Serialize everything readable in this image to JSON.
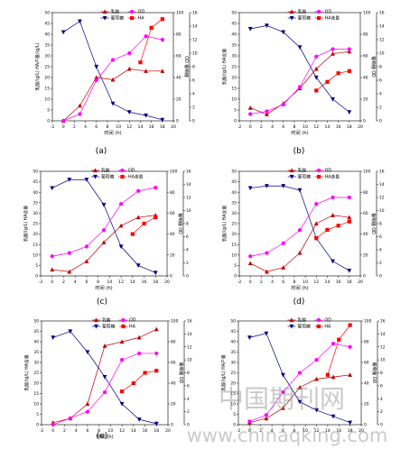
{
  "watermark": {
    "cn": "中国期刊网",
    "url": "www.chinaqking.com",
    "color": "#8a8a8a"
  },
  "colors": {
    "lactic": "#c00000",
    "glucose": "#000080",
    "od": "#ff00ff",
    "ha": "#ff0000"
  },
  "chart_data": [
    {
      "panel_label": "(a)",
      "type": "line",
      "xlabel": "时间 (h)",
      "ylabel_left": "乳酸/(g/L) HA产量/(g/L)",
      "ylabel_right": "OD 葡萄糖",
      "x_ticks": [
        "-2",
        "0",
        "2",
        "4",
        "6",
        "8",
        "10",
        "12",
        "14",
        "16",
        "18",
        "20"
      ],
      "y_left_ticks": [
        "0",
        "5",
        "10",
        "15",
        "20",
        "25",
        "30",
        "35",
        "40",
        "45",
        "50"
      ],
      "y_right1_ticks": [
        "0",
        "20",
        "40",
        "60",
        "80",
        "100"
      ],
      "y_right2_ticks": [
        "0",
        "2",
        "4",
        "6",
        "8",
        "10",
        "12",
        "14",
        "16"
      ],
      "xlim": [
        -2,
        20
      ],
      "legend": [
        {
          "key": "lactic",
          "label": "乳酸"
        },
        {
          "key": "od",
          "label": "OD"
        },
        {
          "key": "glucose",
          "label": "葡萄糖"
        },
        {
          "key": "ha",
          "label": "HA"
        }
      ],
      "series": [
        {
          "key": "lactic",
          "axis": "left",
          "ylim": [
            0,
            50
          ],
          "x": [
            0,
            3,
            6,
            9,
            12,
            15,
            18
          ],
          "y": [
            0,
            7,
            20,
            19,
            24,
            23,
            23
          ]
        },
        {
          "key": "glucose",
          "axis": "right1",
          "ylim": [
            0,
            100
          ],
          "x": [
            0,
            3,
            6,
            9,
            12,
            15,
            18
          ],
          "y": [
            82,
            92,
            50,
            16,
            8,
            5,
            1
          ]
        },
        {
          "key": "od",
          "axis": "right2",
          "ylim": [
            0,
            16
          ],
          "x": [
            0,
            3,
            6,
            9,
            12,
            15,
            18
          ],
          "y": [
            0,
            1,
            6,
            9,
            10,
            12.5,
            12
          ]
        },
        {
          "key": "ha",
          "axis": "left",
          "ylim": [
            0,
            50
          ],
          "x": [
            14,
            16,
            18
          ],
          "y": [
            27,
            43,
            47
          ]
        }
      ]
    },
    {
      "panel_label": "(b)",
      "type": "line",
      "xlabel": "时间 (h)",
      "ylabel_left": "乳酸/(g/L) HA含量",
      "ylabel_right": "葡萄糖 OD",
      "x_ticks": [
        "-2",
        "0",
        "2",
        "4",
        "6",
        "8",
        "10",
        "12",
        "14",
        "16",
        "18",
        "20"
      ],
      "y_left_ticks": [
        "0",
        "5",
        "10",
        "15",
        "20",
        "25",
        "30",
        "35",
        "40",
        "45",
        "50"
      ],
      "y_right1_ticks": [
        "0",
        "20",
        "40",
        "60",
        "80",
        "100"
      ],
      "y_right2_ticks": [
        "0",
        "2",
        "4",
        "6",
        "8",
        "10",
        "12",
        "14",
        "16"
      ],
      "xlim": [
        -2,
        20
      ],
      "legend": [
        {
          "key": "lactic",
          "label": "乳酸"
        },
        {
          "key": "od",
          "label": "OD"
        },
        {
          "key": "glucose",
          "label": "葡萄糖"
        },
        {
          "key": "ha",
          "label": "HA含量"
        }
      ],
      "series": [
        {
          "key": "lactic",
          "axis": "left",
          "ylim": [
            0,
            50
          ],
          "x": [
            0,
            3,
            6,
            9,
            12,
            15,
            18
          ],
          "y": [
            6,
            3,
            8,
            15,
            24,
            31,
            32
          ]
        },
        {
          "key": "glucose",
          "axis": "right1",
          "ylim": [
            0,
            100
          ],
          "x": [
            0,
            3,
            6,
            9,
            12,
            15,
            18
          ],
          "y": [
            85,
            88,
            82,
            68,
            40,
            20,
            8
          ]
        },
        {
          "key": "od",
          "axis": "right2",
          "ylim": [
            0,
            16
          ],
          "x": [
            0,
            3,
            6,
            9,
            12,
            15,
            18
          ],
          "y": [
            1,
            1.4,
            2.4,
            5,
            9.5,
            10.6,
            10.6
          ]
        },
        {
          "key": "ha",
          "axis": "left",
          "ylim": [
            0,
            50
          ],
          "x": [
            12,
            14,
            16,
            18
          ],
          "y": [
            14,
            18,
            22,
            23
          ]
        }
      ]
    },
    {
      "panel_label": "(c)",
      "type": "line",
      "xlabel": "时间 (h)",
      "ylabel_left": "乳酸/(g/L) HA含量",
      "ylabel_right": "葡萄糖 OD",
      "x_ticks": [
        "-2",
        "0",
        "2",
        "4",
        "6",
        "8",
        "10",
        "12",
        "14",
        "16",
        "18",
        "20"
      ],
      "y_left_ticks": [
        "0",
        "5",
        "10",
        "15",
        "20",
        "25",
        "30",
        "35",
        "40",
        "45",
        "50"
      ],
      "y_right1_ticks": [
        "0",
        "20",
        "40",
        "60",
        "80",
        "100"
      ],
      "y_right2_ticks": [
        "0",
        "2",
        "4",
        "6",
        "8",
        "10",
        "12",
        "14",
        "16"
      ],
      "xlim": [
        -2,
        20
      ],
      "legend": [
        {
          "key": "lactic",
          "label": "乳酸"
        },
        {
          "key": "od",
          "label": "OD"
        },
        {
          "key": "glucose",
          "label": "葡萄糖"
        },
        {
          "key": "ha",
          "label": "HA含量"
        }
      ],
      "series": [
        {
          "key": "lactic",
          "axis": "left",
          "ylim": [
            0,
            50
          ],
          "x": [
            0,
            3,
            6,
            9,
            12,
            15,
            18
          ],
          "y": [
            3,
            2,
            7,
            16,
            24,
            28,
            29
          ]
        },
        {
          "key": "glucose",
          "axis": "right1",
          "ylim": [
            0,
            100
          ],
          "x": [
            0,
            3,
            6,
            9,
            12,
            15,
            18
          ],
          "y": [
            84,
            92,
            92,
            68,
            28,
            10,
            3
          ]
        },
        {
          "key": "od",
          "axis": "right2",
          "ylim": [
            0,
            16
          ],
          "x": [
            0,
            3,
            6,
            9,
            12,
            15,
            18
          ],
          "y": [
            3,
            3.5,
            4.5,
            7,
            11,
            13,
            13.5
          ]
        },
        {
          "key": "ha",
          "axis": "left",
          "ylim": [
            0,
            50
          ],
          "x": [
            14,
            16,
            18
          ],
          "y": [
            20,
            25,
            28
          ]
        }
      ]
    },
    {
      "panel_label": "(d)",
      "type": "line",
      "xlabel": "时间 (h)",
      "ylabel_left": "乳酸/(g/L) HA含量",
      "ylabel_right": "葡萄糖 OD",
      "x_ticks": [
        "-2",
        "0",
        "2",
        "4",
        "6",
        "8",
        "10",
        "12",
        "14",
        "16",
        "18",
        "20"
      ],
      "y_left_ticks": [
        "0",
        "5",
        "10",
        "15",
        "20",
        "25",
        "30",
        "35",
        "40",
        "45",
        "50"
      ],
      "y_right1_ticks": [
        "0",
        "20",
        "40",
        "60",
        "80",
        "100"
      ],
      "y_right2_ticks": [
        "0",
        "2",
        "4",
        "6",
        "8",
        "10",
        "12",
        "14",
        "16"
      ],
      "xlim": [
        -2,
        20
      ],
      "legend": [
        {
          "key": "lactic",
          "label": "乳酸"
        },
        {
          "key": "od",
          "label": "OD"
        },
        {
          "key": "glucose",
          "label": "葡萄糖"
        },
        {
          "key": "ha",
          "label": "HA含量"
        }
      ],
      "series": [
        {
          "key": "lactic",
          "axis": "left",
          "ylim": [
            0,
            50
          ],
          "x": [
            0,
            3,
            6,
            9,
            12,
            15,
            18
          ],
          "y": [
            6,
            2,
            4,
            11,
            25,
            29,
            28
          ]
        },
        {
          "key": "glucose",
          "axis": "right1",
          "ylim": [
            0,
            100
          ],
          "x": [
            0,
            3,
            6,
            9,
            12,
            15,
            18
          ],
          "y": [
            84,
            86,
            86,
            82,
            36,
            14,
            5
          ]
        },
        {
          "key": "od",
          "axis": "right2",
          "ylim": [
            0,
            16
          ],
          "x": [
            0,
            3,
            6,
            9,
            12,
            15,
            18
          ],
          "y": [
            3,
            3.5,
            5,
            7,
            11,
            12,
            12
          ]
        },
        {
          "key": "ha",
          "axis": "left",
          "ylim": [
            0,
            50
          ],
          "x": [
            12,
            14,
            16,
            18
          ],
          "y": [
            18,
            22,
            24,
            26
          ]
        }
      ]
    },
    {
      "panel_label": "(e)",
      "type": "line",
      "xlabel": "时间 (h)",
      "ylabel_left": "乳酸/(g/L) HA含量",
      "ylabel_right": "葡萄糖 OD",
      "x_ticks": [
        "-2",
        "0",
        "2",
        "4",
        "6",
        "8",
        "10",
        "12",
        "14",
        "16",
        "18",
        "20"
      ],
      "y_left_ticks": [
        "0",
        "5",
        "10",
        "15",
        "20",
        "25",
        "30",
        "35",
        "40",
        "45",
        "50"
      ],
      "y_right1_ticks": [
        "0",
        "20",
        "40",
        "60",
        "80",
        "100"
      ],
      "y_right2_ticks": [
        "0",
        "2",
        "4",
        "6",
        "8",
        "10",
        "12",
        "14",
        "16"
      ],
      "xlim": [
        -2,
        20
      ],
      "legend": [
        {
          "key": "lactic",
          "label": "乳酸"
        },
        {
          "key": "od",
          "label": "OD"
        },
        {
          "key": "glucose",
          "label": "葡萄糖"
        },
        {
          "key": "ha",
          "label": "HA"
        }
      ],
      "series": [
        {
          "key": "lactic",
          "axis": "left",
          "ylim": [
            0,
            50
          ],
          "x": [
            0,
            3,
            6,
            9,
            12,
            15,
            18
          ],
          "y": [
            1,
            3,
            10,
            38,
            40,
            42,
            46
          ]
        },
        {
          "key": "glucose",
          "axis": "right1",
          "ylim": [
            0,
            100
          ],
          "x": [
            0,
            3,
            6,
            9,
            12,
            15,
            18
          ],
          "y": [
            84,
            90,
            70,
            46,
            20,
            5,
            1
          ]
        },
        {
          "key": "od",
          "axis": "right2",
          "ylim": [
            0,
            16
          ],
          "x": [
            0,
            3,
            6,
            9,
            12,
            15,
            18
          ],
          "y": [
            0,
            1,
            2,
            5,
            10,
            11,
            11
          ]
        },
        {
          "key": "ha",
          "axis": "left",
          "ylim": [
            0,
            50
          ],
          "x": [
            12,
            14,
            16,
            18
          ],
          "y": [
            16,
            20,
            25,
            26
          ]
        }
      ]
    },
    {
      "panel_label": "",
      "type": "line",
      "xlabel": "",
      "ylabel_left": "乳酸/(g/L) HA产量",
      "ylabel_right": "葡萄糖 OD",
      "x_ticks": [
        "-2",
        "0",
        "2",
        "4",
        "6",
        "8",
        "10",
        "12",
        "14",
        "16",
        "18",
        "20"
      ],
      "y_left_ticks": [
        "0",
        "5",
        "10",
        "15",
        "20",
        "25",
        "30",
        "35",
        "40",
        "45",
        "50"
      ],
      "y_right1_ticks": [
        "0",
        "20",
        "40",
        "60",
        "80",
        "100"
      ],
      "y_right2_ticks": [
        "0",
        "2",
        "4",
        "6",
        "8",
        "10",
        "12",
        "14",
        "16"
      ],
      "xlim": [
        -2,
        20
      ],
      "legend": [
        {
          "key": "lactic",
          "label": "乳酸"
        },
        {
          "key": "od",
          "label": "OD"
        },
        {
          "key": "glucose",
          "label": "葡萄糖"
        },
        {
          "key": "ha",
          "label": "HA"
        }
      ],
      "series": [
        {
          "key": "lactic",
          "axis": "left",
          "ylim": [
            0,
            50
          ],
          "x": [
            0,
            3,
            6,
            9,
            12,
            15,
            18
          ],
          "y": [
            1,
            3,
            8,
            18,
            22,
            23,
            24
          ]
        },
        {
          "key": "glucose",
          "axis": "right1",
          "ylim": [
            0,
            100
          ],
          "x": [
            0,
            3,
            6,
            9,
            12,
            15,
            18
          ],
          "y": [
            84,
            88,
            48,
            22,
            14,
            8,
            2
          ]
        },
        {
          "key": "od",
          "axis": "right2",
          "ylim": [
            0,
            16
          ],
          "x": [
            0,
            3,
            6,
            9,
            12,
            15,
            18
          ],
          "y": [
            0.5,
            1.5,
            5,
            8,
            10,
            12.5,
            12
          ]
        },
        {
          "key": "ha",
          "axis": "left",
          "ylim": [
            0,
            50
          ],
          "x": [
            14,
            16,
            18
          ],
          "y": [
            24,
            41,
            48
          ]
        }
      ]
    }
  ]
}
